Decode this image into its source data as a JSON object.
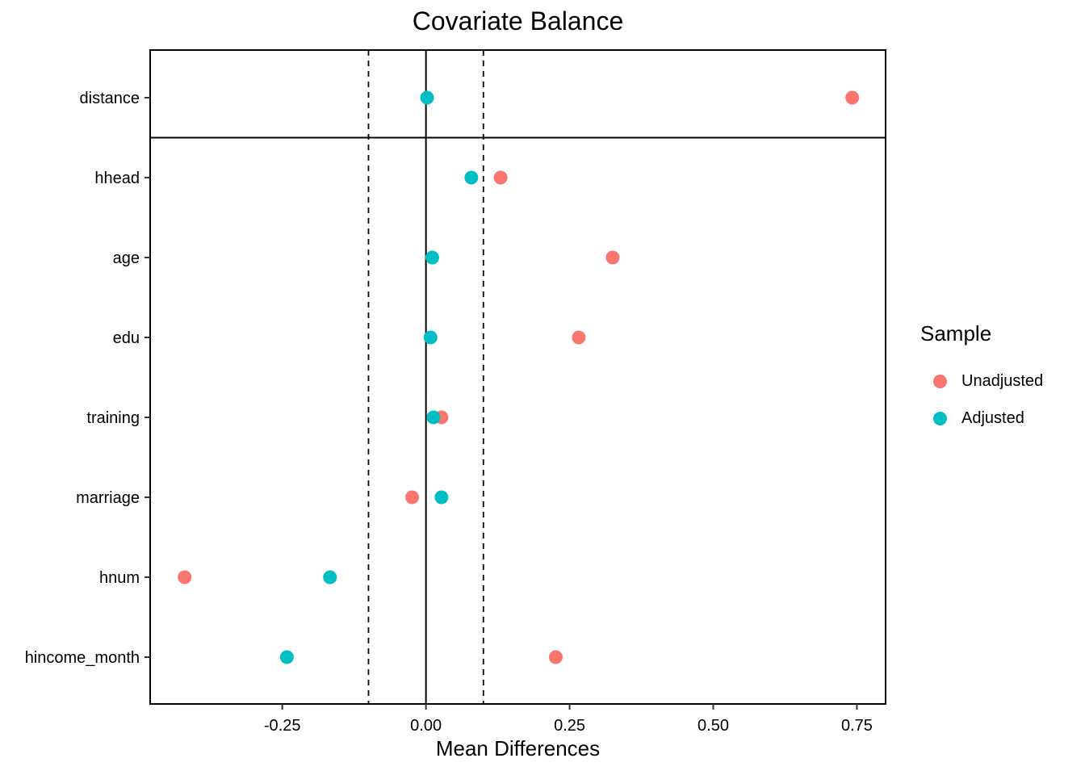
{
  "chart_data": {
    "type": "scatter",
    "title": "Covariate Balance",
    "xlabel": "Mean Differences",
    "ylabel": "",
    "xlim": [
      -0.48,
      0.8
    ],
    "x_ticks": [
      -0.25,
      0.0,
      0.25,
      0.5,
      0.75
    ],
    "x_tick_labels": [
      "-0.25",
      "0.00",
      "0.25",
      "0.50",
      "0.75"
    ],
    "reference_lines": [
      {
        "x": 0.0,
        "style": "solid"
      },
      {
        "x": -0.1,
        "style": "dashed"
      },
      {
        "x": 0.1,
        "style": "dashed"
      }
    ],
    "categories": [
      "distance",
      "hhead",
      "age",
      "edu",
      "training",
      "marriage",
      "hnum",
      "hincome_month"
    ],
    "separated_categories": [
      "distance"
    ],
    "series": [
      {
        "name": "Unadjusted",
        "color": "#F8766D",
        "values": [
          0.742,
          0.13,
          0.325,
          0.266,
          0.027,
          -0.024,
          -0.42,
          0.226
        ]
      },
      {
        "name": "Adjusted",
        "color": "#00BFC4",
        "values": [
          0.002,
          0.079,
          0.011,
          0.008,
          0.013,
          0.027,
          -0.167,
          -0.242
        ]
      }
    ],
    "legend": {
      "title": "Sample",
      "position": "right"
    },
    "grid": false
  }
}
